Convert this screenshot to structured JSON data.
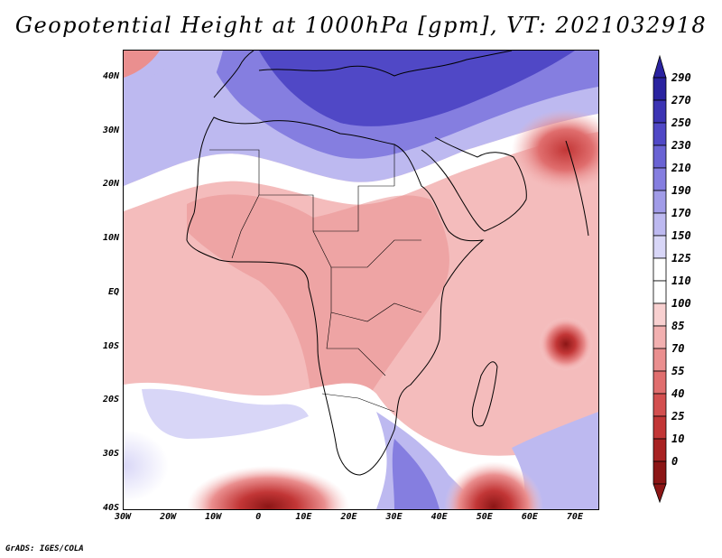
{
  "title": "Geopotential Height at 1000hPa [gpm], VT: 2021032918",
  "credit": "GrADS: IGES/COLA",
  "map": {
    "variable": "Geopotential Height",
    "level": "1000hPa",
    "units": "gpm",
    "valid_time": "2021032918",
    "lon_range": [
      -30,
      75
    ],
    "lat_range": [
      -40,
      45
    ],
    "lat_labels": [
      "40N",
      "30N",
      "20N",
      "10N",
      "EQ",
      "10S",
      "20S",
      "30S",
      "40S"
    ],
    "lat_values": [
      40,
      30,
      20,
      10,
      0,
      -10,
      -20,
      -30,
      -40
    ],
    "lon_labels": [
      "30W",
      "20W",
      "10W",
      "0",
      "10E",
      "20E",
      "30E",
      "40E",
      "50E",
      "60E",
      "70E"
    ],
    "lon_values": [
      -30,
      -20,
      -10,
      0,
      10,
      20,
      30,
      40,
      50,
      60,
      70
    ]
  },
  "colorbar": {
    "labels": [
      "290",
      "270",
      "250",
      "230",
      "210",
      "190",
      "170",
      "150",
      "125",
      "110",
      "100",
      "85",
      "70",
      "55",
      "40",
      "25",
      "10",
      "0"
    ],
    "colors": [
      "#2a23a0",
      "#3c34b4",
      "#5048c6",
      "#6a63d4",
      "#857ee0",
      "#a19ce8",
      "#bdb9f0",
      "#d8d6f7",
      "#ffffff",
      "#ffffff",
      "#f8d0d0",
      "#f2b0b0",
      "#ea8f8f",
      "#e06e6e",
      "#d34f4f",
      "#c23636",
      "#a82222",
      "#8c1616"
    ]
  }
}
